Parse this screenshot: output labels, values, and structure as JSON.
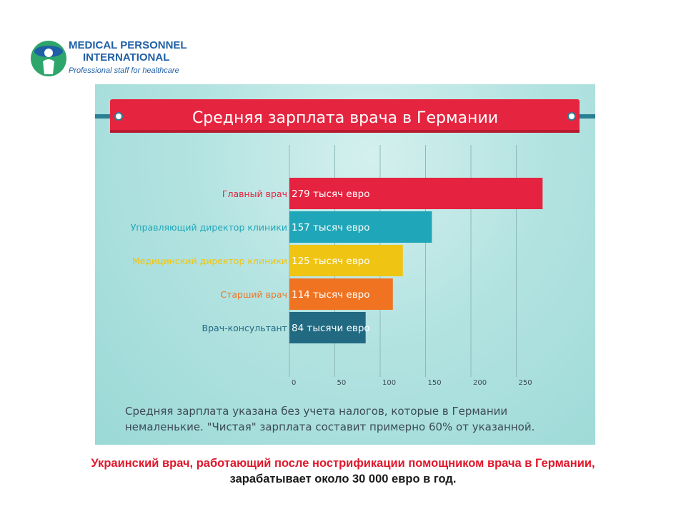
{
  "logo": {
    "line1": "MEDICAL PERSONNEL",
    "line2": "INTERNATIONAL",
    "tagline": "Professional staff for healthcare",
    "colors": {
      "blue": "#1f5fa6",
      "green": "#2ea56a"
    }
  },
  "chart_data": {
    "type": "bar",
    "orientation": "horizontal",
    "title": "Средняя зарплата врача в Германии",
    "categories": [
      "Главный врач",
      "Управляющий директор клиники",
      "Медицинский директор клиники",
      "Старший врач",
      "Врач-консультант"
    ],
    "values": [
      279,
      157,
      125,
      114,
      84
    ],
    "data_labels": [
      "279 тысяч евро",
      "157 тысяч евро",
      "125 тысяч евро",
      "114 тысяч евро",
      "84 тысячи евро"
    ],
    "colors": [
      "#e5223f",
      "#1fa6b8",
      "#efc413",
      "#f07321",
      "#226a82"
    ],
    "x_ticks": [
      0,
      50,
      100,
      150,
      200,
      250
    ],
    "xlim": [
      0,
      300
    ],
    "grid": true,
    "title_banner_color": "#e5253f"
  },
  "note": "Средняя зарплата указана без учета налогов, которые в Германии немаленькие. \"Чистая\" зарплата составит примерно 60% от указанной.",
  "caption": {
    "line1": "Украинский врач, работающий после нострификации помощником врача в Германии,",
    "line2": "зарабатывает  около 30 000 евро в год."
  }
}
